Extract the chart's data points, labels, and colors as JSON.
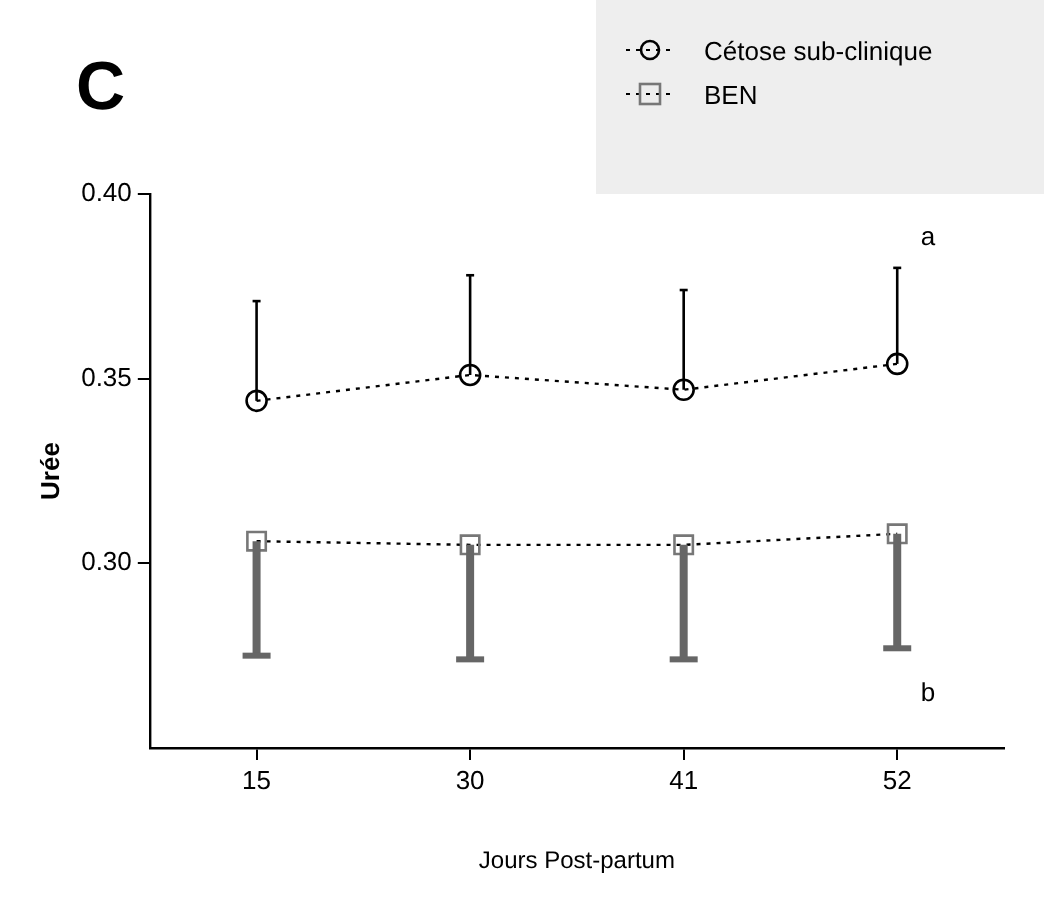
{
  "chart_data": {
    "type": "line",
    "xlabel": "Jours Post-partum",
    "ylabel": "Urée",
    "categories": [
      "15",
      "30",
      "41",
      "52"
    ],
    "series": [
      {
        "name": "Cétose sub-clinique",
        "color": "#000000",
        "marker": "circle",
        "line_style": "dotted",
        "values": [
          0.344,
          0.351,
          0.347,
          0.354
        ],
        "errors": [
          [
            0.344,
            0.371
          ],
          [
            0.351,
            0.378
          ],
          [
            0.347,
            0.374
          ],
          [
            0.354,
            0.38
          ]
        ]
      },
      {
        "name": "BEN",
        "color": "#777777",
        "marker": "square",
        "line_style": "dotted",
        "values": [
          0.306,
          0.305,
          0.305,
          0.308
        ],
        "errors": [
          [
            0.275,
            0.306
          ],
          [
            0.274,
            0.305
          ],
          [
            0.274,
            0.305
          ],
          [
            0.277,
            0.308
          ]
        ]
      }
    ],
    "ylim": [
      0.25,
      0.4
    ],
    "yticks": [
      {
        "value": 0.3,
        "label": "0.30"
      },
      {
        "value": 0.35,
        "label": "0.35"
      },
      {
        "value": 0.4,
        "label": "0.40"
      }
    ],
    "grid": false,
    "legend": "top right",
    "annotations": [
      "C",
      "a",
      "b"
    ]
  }
}
